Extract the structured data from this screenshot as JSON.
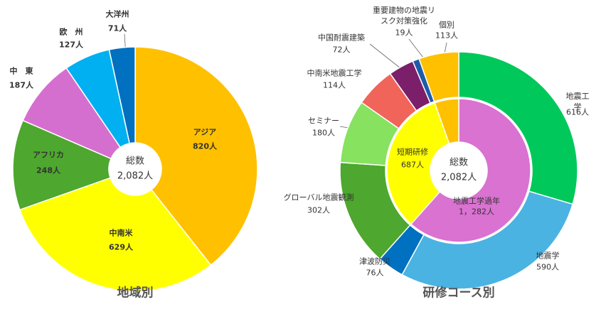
{
  "chart_data": [
    {
      "type": "pie",
      "title": "地域別",
      "categories": [
        "アジア",
        "中南米",
        "アフリカ",
        "中　東",
        "欧　州",
        "大洋州"
      ],
      "values": [
        820,
        629,
        248,
        187,
        127,
        71
      ],
      "value_labels": [
        "820人",
        "629人",
        "248人",
        "187人",
        "127人",
        "71人"
      ],
      "colors": [
        "#ffc000",
        "#ffff00",
        "#4ea72e",
        "#d56fcf",
        "#00b0f0",
        "#0070c0"
      ],
      "center_label": "総数",
      "total": 2082,
      "total_label": "2,082人"
    },
    {
      "type": "donut",
      "title": "研修コース別",
      "inner": {
        "categories": [
          "地震工学過年",
          "短期研修",
          null
        ],
        "values": [
          1282,
          687,
          113
        ],
        "value_labels": [
          "1，282人",
          "687人",
          null
        ],
        "colors": [
          "#d972d0",
          "#ffff00",
          "#ffc000"
        ]
      },
      "outer": {
        "categories": [
          "地震工学",
          "地震学",
          "津波防災",
          "グローバル地震観測",
          "セミナー",
          "中南米地震工学",
          "中国耐震建築",
          "重要建物の地震リ\nスク対策強化",
          "個別"
        ],
        "values": [
          616,
          590,
          76,
          302,
          180,
          114,
          72,
          19,
          113
        ],
        "value_labels": [
          "616人",
          "590人",
          "76人",
          "302人",
          "180人",
          "114人",
          "72人",
          "19人",
          "113人"
        ],
        "colors": [
          "#00c85a",
          "#4ab3e2",
          "#0070c0",
          "#4ea72e",
          "#86e25f",
          "#f0645a",
          "#7b1f6a",
          "#1e5ca8",
          "#ffc000"
        ]
      },
      "center_label": "総数",
      "total": 2082,
      "total_label": "2,082人"
    }
  ]
}
